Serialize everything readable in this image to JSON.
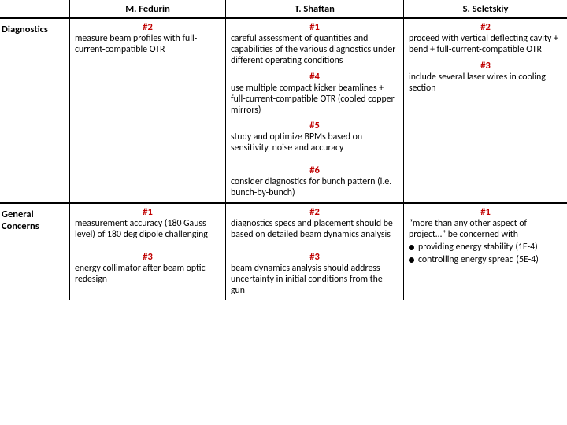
{
  "colors": {
    "number": "#c00000",
    "text": "#000000",
    "rule": "#000000",
    "background": "#ffffff"
  },
  "fonts": {
    "family": "Calibri, Arial, sans-serif",
    "header_size_pt": 12.5,
    "number_size_pt": 12.5,
    "body_size_pt": 11.8
  },
  "columns": {
    "row_label": "",
    "c1": "M. Fedurin",
    "c2": "T. Shaftan",
    "c3": "S. Seletskiy"
  },
  "rows": {
    "diagnostics": {
      "label": "Diagnostics",
      "c1": {
        "items": [
          {
            "num": "#2",
            "txt": "measure beam profiles with full-current-compatible OTR"
          }
        ]
      },
      "c2": {
        "items": [
          {
            "num": "#1",
            "txt": "careful assessment of quantities and capabilities of the various diagnostics under different operating conditions"
          },
          {
            "num": "#4",
            "txt": "use multiple compact kicker beamlines + full-current-compatible OTR (cooled copper mirrors)"
          },
          {
            "num": "#5",
            "txt": "study and optimize BPMs based on sensitivity, noise and accuracy"
          },
          {
            "num": "#6",
            "txt": "consider diagnostics for bunch pattern (i.e. bunch-by-bunch)"
          }
        ]
      },
      "c3": {
        "items": [
          {
            "num": "#2",
            "txt": "proceed with vertical deflecting cavity + bend + full-current-compatible OTR"
          },
          {
            "num": "#3",
            "txt": "include several laser wires in cooling section"
          }
        ]
      }
    },
    "general": {
      "label": "General Concerns",
      "c1": {
        "items": [
          {
            "num": "#1",
            "txt": "measurement accuracy (180 Gauss level) of 180 deg dipole challenging"
          },
          {
            "num": "#3",
            "txt": "energy collimator after beam optic redesign"
          }
        ]
      },
      "c2": {
        "items": [
          {
            "num": "#2",
            "txt": "diagnostics specs and placement should be based on detailed beam dynamics analysis"
          },
          {
            "num": "#3",
            "txt": "beam dynamics analysis should address uncertainty in initial conditions from the gun"
          }
        ]
      },
      "c3": {
        "items": [
          {
            "num": "#1",
            "txt_lead": "“more than any other aspect of project…” be concerned with",
            "bullets": [
              "providing energy stability (1E-4)",
              "controlling energy spread (5E-4)"
            ]
          }
        ]
      }
    }
  }
}
